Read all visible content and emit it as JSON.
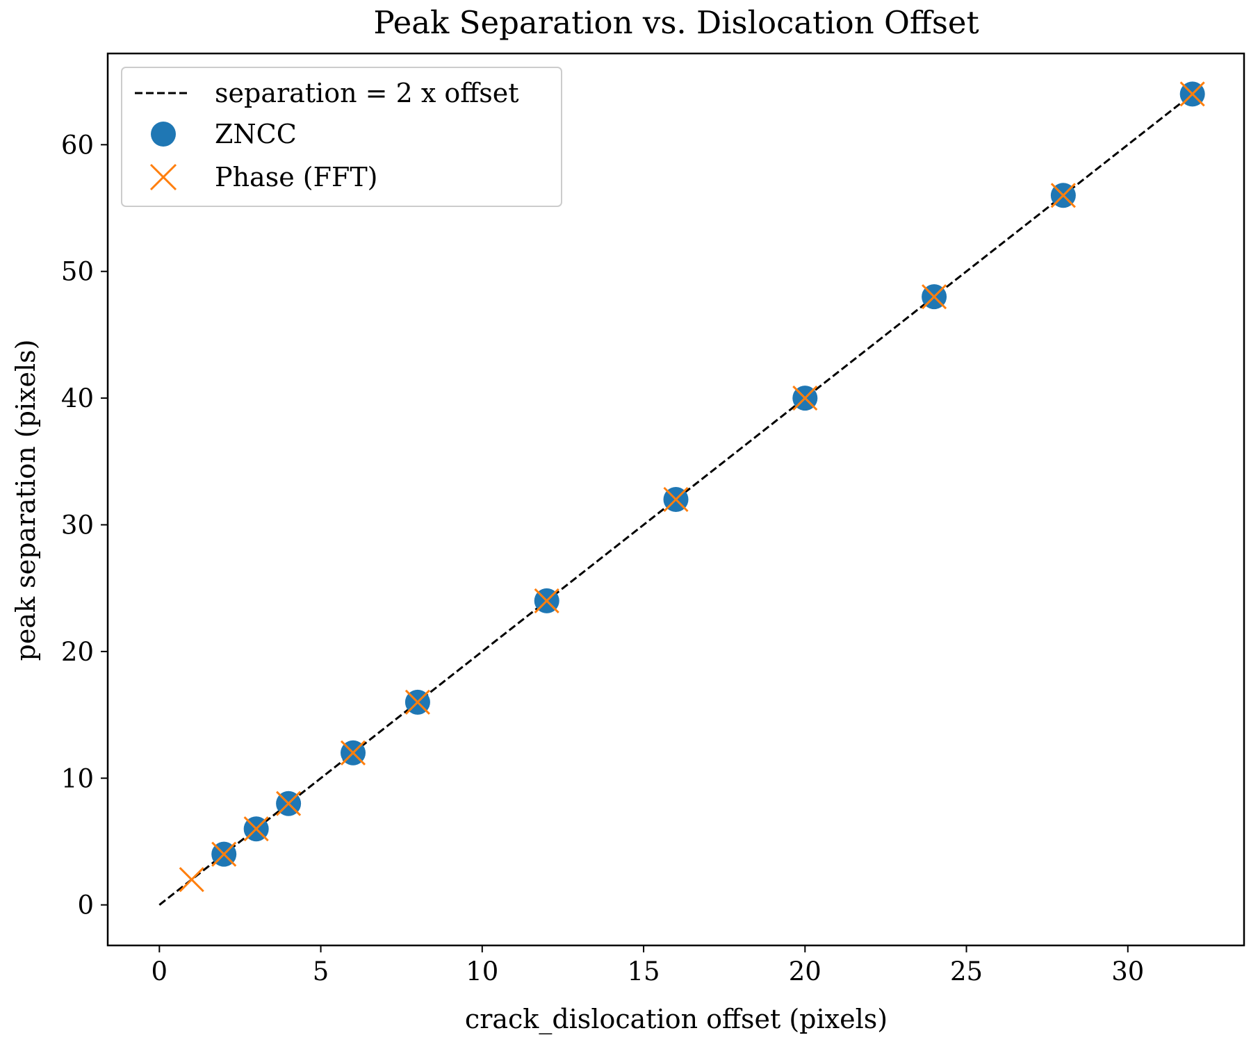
{
  "chart_data": {
    "type": "scatter",
    "title": "Peak Separation vs. Dislocation Offset",
    "xlabel": "crack_dislocation offset (pixels)",
    "ylabel": "peak separation (pixels)",
    "xlim": [
      -1.6,
      33.6
    ],
    "ylim": [
      -3.2,
      67.2
    ],
    "x_ticks": [
      0,
      5,
      10,
      15,
      20,
      25,
      30
    ],
    "y_ticks": [
      0,
      10,
      20,
      30,
      40,
      50,
      60
    ],
    "grid": false,
    "legend_position": "top-left",
    "reference_line": {
      "name": "separation = 2 x offset",
      "x": [
        0,
        32
      ],
      "y": [
        0,
        64
      ],
      "style": "dashed",
      "color": "#000000"
    },
    "series": [
      {
        "name": "ZNCC",
        "marker": "circle",
        "color": "#1f77b4",
        "x": [
          2,
          3,
          4,
          6,
          8,
          12,
          16,
          20,
          24,
          28,
          32
        ],
        "y": [
          4,
          6,
          8,
          12,
          16,
          24,
          32,
          40,
          48,
          56,
          64
        ]
      },
      {
        "name": "Phase (FFT)",
        "marker": "x",
        "color": "#ff7f0e",
        "x": [
          1,
          2,
          3,
          4,
          6,
          8,
          12,
          16,
          20,
          24,
          28,
          32
        ],
        "y": [
          2,
          4,
          6,
          8,
          12,
          16,
          24,
          32,
          40,
          48,
          56,
          64
        ]
      }
    ]
  }
}
